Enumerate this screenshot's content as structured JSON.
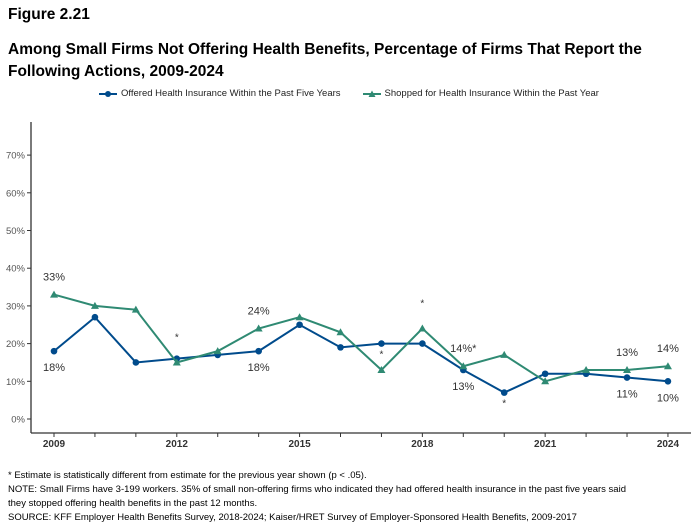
{
  "figure_label": "Figure 2.21",
  "chart_data": {
    "type": "line",
    "title": "Among Small Firms Not Offering Health Benefits, Percentage of Firms That Report the Following Actions, 2009-2024",
    "x": [
      2009,
      2010,
      2011,
      2012,
      2013,
      2014,
      2015,
      2016,
      2017,
      2018,
      2019,
      2020,
      2021,
      2022,
      2023,
      2024
    ],
    "x_tick_labels": [
      "2009",
      "2012",
      "2015",
      "2018",
      "2021",
      "2024"
    ],
    "y_tick_labels": [
      "0%",
      "10%",
      "20%",
      "30%",
      "40%",
      "50%",
      "60%",
      "70%"
    ],
    "ylim": [
      0,
      70
    ],
    "grid": false,
    "legend_position": "top",
    "series": [
      {
        "name": "Offered Health Insurance Within the Past Five Years",
        "color": "#004b8c",
        "marker": "circle",
        "values": [
          18,
          27,
          15,
          16,
          17,
          18,
          25,
          19,
          20,
          20,
          13,
          7,
          12,
          12,
          11,
          10
        ]
      },
      {
        "name": "Shopped for Health Insurance Within the Past Year",
        "color": "#2f8a73",
        "marker": "triangle",
        "values": [
          33,
          30,
          29,
          15,
          18,
          24,
          27,
          23,
          13,
          24,
          14,
          17,
          10,
          13,
          13,
          14
        ]
      }
    ],
    "data_labels": [
      {
        "series": 1,
        "x": 2009,
        "text": "33%",
        "pos": "above"
      },
      {
        "series": 0,
        "x": 2009,
        "text": "18%",
        "pos": "below"
      },
      {
        "series": 1,
        "x": 2014,
        "text": "24%",
        "pos": "above"
      },
      {
        "series": 0,
        "x": 2014,
        "text": "18%",
        "pos": "below"
      },
      {
        "series": 1,
        "x": 2019,
        "text": "14%*",
        "pos": "above"
      },
      {
        "series": 0,
        "x": 2019,
        "text": "13%",
        "pos": "below"
      },
      {
        "series": 1,
        "x": 2023,
        "text": "13%",
        "pos": "above"
      },
      {
        "series": 0,
        "x": 2023,
        "text": "11%",
        "pos": "below"
      },
      {
        "series": 1,
        "x": 2024,
        "text": "14%",
        "pos": "above"
      },
      {
        "series": 0,
        "x": 2024,
        "text": "10%",
        "pos": "below"
      },
      {
        "series": 1,
        "x": 2012,
        "text": "*",
        "pos": "above"
      },
      {
        "series": 0,
        "x": 2017,
        "text": "*",
        "pos": "below"
      },
      {
        "series": 1,
        "x": 2018,
        "text": "*",
        "pos": "above"
      },
      {
        "series": 0,
        "x": 2020,
        "text": "*",
        "pos": "below"
      }
    ]
  },
  "notes": [
    "* Estimate is statistically different from estimate for the previous year shown (p < .05).",
    "NOTE: Small Firms have 3-199 workers. 35% of small non-offering firms who indicated they had offered health insurance in the past five years said",
    "they stopped offering health benefits in the past 12 months.",
    "SOURCE: KFF Employer Health Benefits Survey, 2018-2024; Kaiser/HRET Survey of Employer-Sponsored Health Benefits, 2009-2017"
  ]
}
